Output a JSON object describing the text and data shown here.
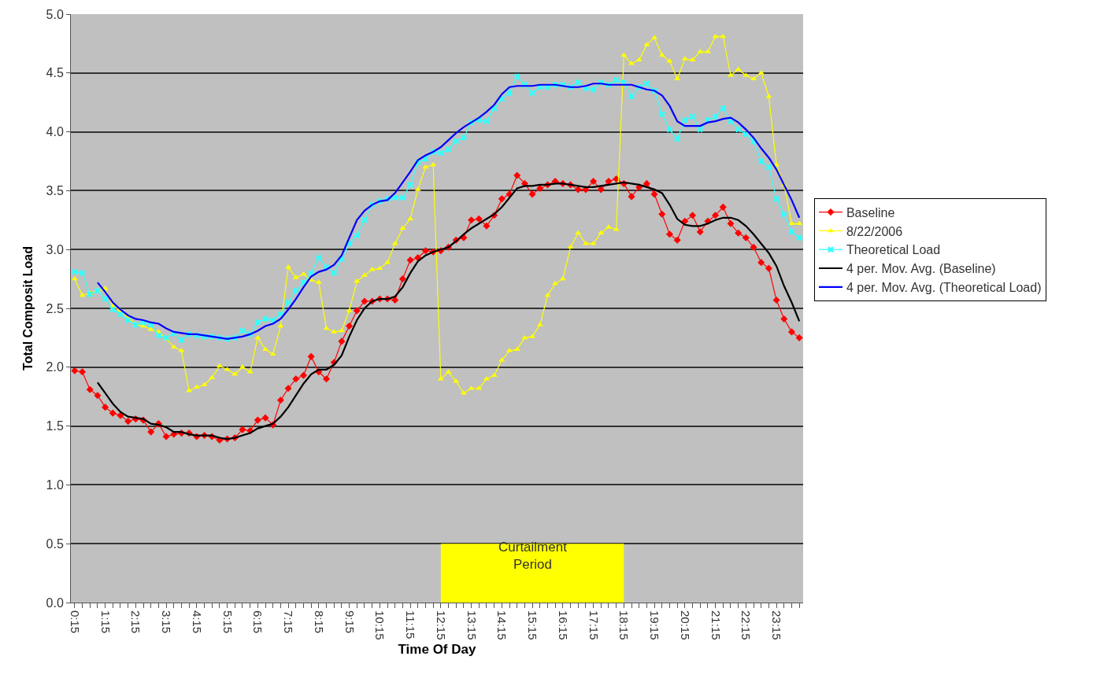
{
  "chart_data": {
    "type": "line",
    "xlabel": "Time Of Day",
    "ylabel": "Total Composit Load",
    "categories": [
      "0:15",
      null,
      null,
      null,
      "1:15",
      null,
      null,
      null,
      "2:15",
      null,
      null,
      null,
      "3:15",
      null,
      null,
      null,
      "4:15",
      null,
      null,
      null,
      "5:15",
      null,
      null,
      null,
      "6:15",
      null,
      null,
      null,
      "7:15",
      null,
      null,
      null,
      "8:15",
      null,
      null,
      null,
      "9:15",
      null,
      null,
      null,
      "10:15",
      null,
      null,
      null,
      "11:15",
      null,
      null,
      null,
      "12:15",
      null,
      null,
      null,
      "13:15",
      null,
      null,
      null,
      "14:15",
      null,
      null,
      null,
      "15:15",
      null,
      null,
      null,
      "16:15",
      null,
      null,
      null,
      "17:15",
      null,
      null,
      null,
      "18:15",
      null,
      null,
      null,
      "19:15",
      null,
      null,
      null,
      "20:15",
      null,
      null,
      null,
      "21:15",
      null,
      null,
      null,
      "22:15",
      null,
      null,
      null,
      "23:15",
      null,
      null,
      null
    ],
    "series": [
      {
        "name": "Baseline",
        "color": "#ff0000",
        "marker": "diamond",
        "values": [
          1.97,
          1.96,
          1.81,
          1.76,
          1.66,
          1.61,
          1.59,
          1.54,
          1.56,
          1.55,
          1.45,
          1.52,
          1.41,
          1.43,
          1.44,
          1.44,
          1.41,
          1.42,
          1.41,
          1.38,
          1.39,
          1.4,
          1.47,
          1.46,
          1.55,
          1.57,
          1.51,
          1.72,
          1.82,
          1.9,
          1.93,
          2.09,
          1.96,
          1.9,
          2.04,
          2.22,
          2.35,
          2.48,
          2.56,
          2.56,
          2.58,
          2.58,
          2.57,
          2.75,
          2.91,
          2.93,
          2.99,
          2.98,
          2.99,
          3.02,
          3.08,
          3.1,
          3.25,
          3.26,
          3.2,
          3.29,
          3.43,
          3.47,
          3.63,
          3.56,
          3.47,
          3.52,
          3.55,
          3.58,
          3.56,
          3.55,
          3.51,
          3.51,
          3.58,
          3.51,
          3.58,
          3.6,
          3.56,
          3.45,
          3.53,
          3.56,
          3.47,
          3.3,
          3.13,
          3.08,
          3.24,
          3.29,
          3.15,
          3.24,
          3.29,
          3.36,
          3.22,
          3.14,
          3.1,
          3.02,
          2.89,
          2.84,
          2.57,
          2.41,
          2.3,
          2.25
        ]
      },
      {
        "name": "8/22/2006",
        "color": "#ffff00",
        "marker": "triangle",
        "values": [
          2.75,
          2.61,
          2.63,
          2.65,
          2.67,
          2.52,
          2.48,
          2.42,
          2.36,
          2.35,
          2.32,
          2.3,
          2.24,
          2.17,
          2.14,
          1.8,
          1.83,
          1.85,
          1.91,
          2.01,
          1.98,
          1.94,
          2.0,
          1.96,
          2.25,
          2.15,
          2.11,
          2.35,
          2.85,
          2.76,
          2.79,
          2.74,
          2.72,
          2.33,
          2.3,
          2.31,
          2.48,
          2.73,
          2.78,
          2.83,
          2.84,
          2.89,
          3.05,
          3.18,
          3.26,
          3.51,
          3.7,
          3.72,
          1.9,
          1.96,
          1.88,
          1.78,
          1.82,
          1.82,
          1.9,
          1.93,
          2.06,
          2.14,
          2.15,
          2.25,
          2.26,
          2.36,
          2.61,
          2.71,
          2.75,
          3.02,
          3.14,
          3.05,
          3.05,
          3.14,
          3.19,
          3.17,
          4.65,
          4.58,
          4.61,
          4.74,
          4.8,
          4.65,
          4.6,
          4.45,
          4.62,
          4.61,
          4.68,
          4.68,
          4.81,
          4.81,
          4.48,
          4.53,
          4.48,
          4.45,
          4.5,
          4.3,
          3.72,
          3.55,
          3.22,
          3.22
        ]
      },
      {
        "name": "Theoretical Load",
        "color": "#33ffff",
        "marker": "cross",
        "values": [
          2.81,
          2.8,
          2.62,
          2.65,
          2.58,
          2.49,
          2.45,
          2.4,
          2.36,
          2.38,
          2.36,
          2.27,
          2.25,
          2.29,
          2.23,
          2.28,
          2.27,
          2.26,
          2.26,
          2.25,
          2.24,
          2.25,
          2.31,
          2.28,
          2.38,
          2.41,
          2.4,
          2.45,
          2.55,
          2.65,
          2.72,
          2.8,
          2.93,
          2.85,
          2.8,
          2.92,
          3.05,
          3.12,
          3.25,
          3.38,
          3.41,
          3.43,
          3.44,
          3.44,
          3.55,
          3.74,
          3.77,
          3.83,
          3.82,
          3.85,
          3.92,
          3.95,
          4.08,
          4.1,
          4.09,
          4.2,
          4.28,
          4.33,
          4.47,
          4.4,
          4.33,
          4.38,
          4.38,
          4.4,
          4.4,
          4.38,
          4.42,
          4.37,
          4.36,
          4.42,
          4.4,
          4.44,
          4.42,
          4.3,
          4.38,
          4.41,
          4.35,
          4.15,
          4.02,
          3.94,
          4.1,
          4.13,
          4.02,
          4.1,
          4.13,
          4.2,
          4.09,
          4.02,
          3.98,
          3.92,
          3.75,
          3.7,
          3.43,
          3.3,
          3.15,
          3.1
        ]
      },
      {
        "name": "4 per. Mov. Avg. (Baseline)",
        "color": "#000000",
        "marker": "none",
        "values": [
          null,
          null,
          null,
          1.87,
          1.78,
          1.69,
          1.62,
          1.58,
          1.57,
          1.56,
          1.52,
          1.51,
          1.49,
          1.45,
          1.45,
          1.43,
          1.42,
          1.42,
          1.42,
          1.4,
          1.39,
          1.4,
          1.42,
          1.44,
          1.48,
          1.5,
          1.52,
          1.58,
          1.66,
          1.76,
          1.86,
          1.94,
          1.98,
          1.98,
          2.02,
          2.1,
          2.26,
          2.4,
          2.5,
          2.56,
          2.58,
          2.58,
          2.6,
          2.68,
          2.8,
          2.9,
          2.95,
          2.98,
          3.0,
          3.02,
          3.07,
          3.13,
          3.18,
          3.22,
          3.26,
          3.3,
          3.36,
          3.44,
          3.52,
          3.54,
          3.54,
          3.55,
          3.55,
          3.56,
          3.56,
          3.55,
          3.54,
          3.53,
          3.53,
          3.54,
          3.55,
          3.56,
          3.57,
          3.56,
          3.55,
          3.53,
          3.51,
          3.48,
          3.38,
          3.26,
          3.21,
          3.2,
          3.2,
          3.22,
          3.25,
          3.27,
          3.27,
          3.25,
          3.2,
          3.13,
          3.05,
          2.97,
          2.86,
          2.69,
          2.55,
          2.39
        ]
      },
      {
        "name": "4 per. Mov. Avg. (Theoretical Load)",
        "color": "#0000ff",
        "marker": "none",
        "values": [
          null,
          null,
          null,
          2.72,
          2.64,
          2.55,
          2.49,
          2.44,
          2.41,
          2.4,
          2.38,
          2.37,
          2.33,
          2.3,
          2.29,
          2.28,
          2.28,
          2.27,
          2.26,
          2.25,
          2.24,
          2.25,
          2.26,
          2.28,
          2.31,
          2.35,
          2.37,
          2.41,
          2.49,
          2.58,
          2.68,
          2.77,
          2.81,
          2.83,
          2.87,
          2.95,
          3.1,
          3.25,
          3.33,
          3.38,
          3.41,
          3.42,
          3.48,
          3.57,
          3.66,
          3.76,
          3.8,
          3.83,
          3.87,
          3.93,
          3.99,
          4.04,
          4.08,
          4.12,
          4.17,
          4.23,
          4.32,
          4.38,
          4.39,
          4.39,
          4.39,
          4.4,
          4.4,
          4.4,
          4.39,
          4.38,
          4.38,
          4.39,
          4.41,
          4.41,
          4.4,
          4.4,
          4.4,
          4.4,
          4.38,
          4.36,
          4.35,
          4.31,
          4.22,
          4.09,
          4.05,
          4.05,
          4.05,
          4.08,
          4.09,
          4.11,
          4.12,
          4.08,
          4.02,
          3.95,
          3.86,
          3.78,
          3.68,
          3.55,
          3.42,
          3.27
        ]
      }
    ],
    "ylim": [
      0,
      5
    ],
    "yticks": [
      {
        "value": 0,
        "label": "0.0"
      },
      {
        "value": 0.5,
        "label": "0.5"
      },
      {
        "value": 1,
        "label": "1.0"
      },
      {
        "value": 1.5,
        "label": "1.5"
      },
      {
        "value": 2,
        "label": "2.0"
      },
      {
        "value": 2.5,
        "label": "2.5"
      },
      {
        "value": 3,
        "label": "3.0"
      },
      {
        "value": 3.5,
        "label": "3.5"
      },
      {
        "value": 4,
        "label": "4.0"
      },
      {
        "value": 4.5,
        "label": "4.5"
      },
      {
        "value": 5,
        "label": "5.0"
      }
    ],
    "grid": "y",
    "legend": "right",
    "line_style": "solid",
    "bands": [
      {
        "axis": "x",
        "from": "12:15",
        "to": "18:15",
        "label": "Curtailment Period",
        "color": "#ffff00"
      }
    ]
  }
}
